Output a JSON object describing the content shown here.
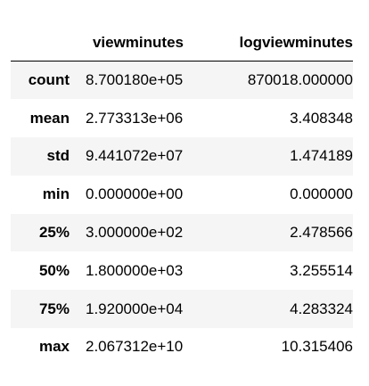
{
  "table": {
    "columns": [
      "viewminutes",
      "logviewminutes"
    ],
    "rows": [
      {
        "index": "count",
        "viewminutes": "8.700180e+05",
        "logviewminutes": "870018.000000"
      },
      {
        "index": "mean",
        "viewminutes": "2.773313e+06",
        "logviewminutes": "3.408348"
      },
      {
        "index": "std",
        "viewminutes": "9.441072e+07",
        "logviewminutes": "1.474189"
      },
      {
        "index": "min",
        "viewminutes": "0.000000e+00",
        "logviewminutes": "0.000000"
      },
      {
        "index": "25%",
        "viewminutes": "3.000000e+02",
        "logviewminutes": "2.478566"
      },
      {
        "index": "50%",
        "viewminutes": "1.800000e+03",
        "logviewminutes": "3.255514"
      },
      {
        "index": "75%",
        "viewminutes": "1.920000e+04",
        "logviewminutes": "4.283324"
      },
      {
        "index": "max",
        "viewminutes": "2.067312e+10",
        "logviewminutes": "10.315406"
      }
    ]
  },
  "colors": {
    "stripe": "#f5f5f5",
    "header_rule": "#000000",
    "text": "#000000"
  }
}
